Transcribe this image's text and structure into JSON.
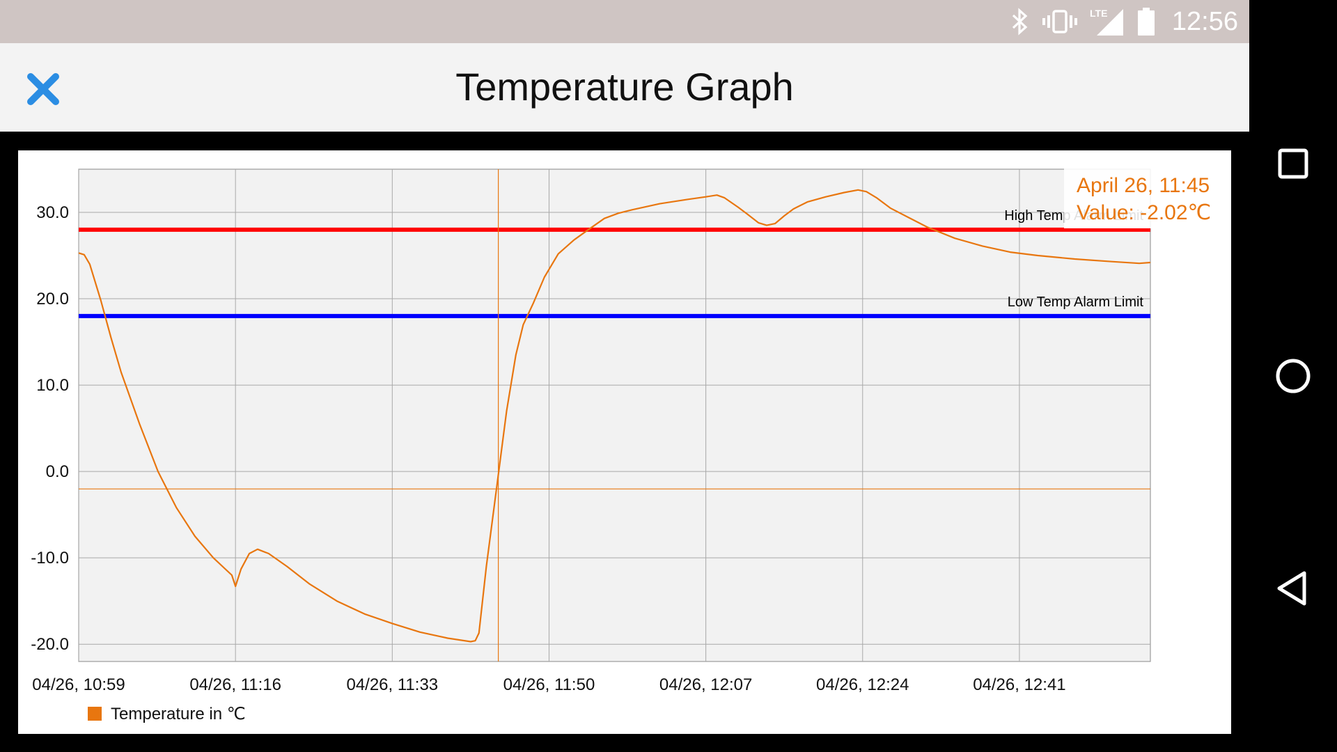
{
  "status_bar": {
    "time": "12:56",
    "icons": [
      "bluetooth-icon",
      "vibrate-icon",
      "lte-signal-icon",
      "battery-icon"
    ],
    "lte_label": "LTE"
  },
  "app_bar": {
    "title": "Temperature Graph",
    "close_icon": "close-icon",
    "close_color": "#2b8de3"
  },
  "nav_bar": {
    "icons": [
      "recents-square-icon",
      "home-circle-icon",
      "back-triangle-icon"
    ]
  },
  "chart_data": {
    "type": "line",
    "ylim": [
      -22,
      35
    ],
    "yticks": [
      30,
      20,
      10,
      0,
      -10,
      -20
    ],
    "ytick_labels": [
      "30.0",
      "20.0",
      "10.0",
      "0.0",
      "-10.0",
      "-20.0"
    ],
    "xlim": [
      0,
      116.2
    ],
    "xticks": [
      0,
      17,
      34,
      51,
      68,
      85,
      102
    ],
    "xtick_labels": [
      "04/26, 10:59",
      "04/26, 11:16",
      "04/26, 11:33",
      "04/26, 11:50",
      "04/26, 12:07",
      "04/26, 12:24",
      "04/26, 12:41"
    ],
    "grid": true,
    "legend_position": "bottom-left",
    "series": [
      {
        "name": "Temperature in ℃",
        "color": "#e8760f",
        "points": [
          [
            0,
            25.3
          ],
          [
            0.6,
            25.1
          ],
          [
            1.2,
            24.0
          ],
          [
            2.4,
            19.8
          ],
          [
            3.5,
            15.5
          ],
          [
            4.6,
            11.5
          ],
          [
            6.6,
            5.5
          ],
          [
            8.6,
            0.0
          ],
          [
            10.6,
            -4.2
          ],
          [
            12.6,
            -7.5
          ],
          [
            14.6,
            -10.0
          ],
          [
            16.6,
            -12.0
          ],
          [
            17.0,
            -13.3
          ],
          [
            17.6,
            -11.3
          ],
          [
            18.5,
            -9.5
          ],
          [
            19.4,
            -9.0
          ],
          [
            20.6,
            -9.5
          ],
          [
            22.6,
            -11.0
          ],
          [
            25.0,
            -13.0
          ],
          [
            28.0,
            -15.0
          ],
          [
            31.0,
            -16.5
          ],
          [
            34.0,
            -17.6
          ],
          [
            37.0,
            -18.6
          ],
          [
            40.0,
            -19.3
          ],
          [
            42.5,
            -19.7
          ],
          [
            43.0,
            -19.6
          ],
          [
            43.4,
            -18.7
          ],
          [
            44.2,
            -11.0
          ],
          [
            45.3,
            -2.0
          ],
          [
            46.4,
            7.0
          ],
          [
            47.4,
            13.5
          ],
          [
            48.2,
            17.0
          ],
          [
            49.3,
            19.5
          ],
          [
            50.5,
            22.5
          ],
          [
            52.0,
            25.2
          ],
          [
            53.7,
            26.8
          ],
          [
            55.0,
            27.8
          ],
          [
            57.0,
            29.3
          ],
          [
            58.5,
            29.9
          ],
          [
            60.0,
            30.3
          ],
          [
            63.0,
            31.0
          ],
          [
            66.0,
            31.5
          ],
          [
            68.0,
            31.8
          ],
          [
            69.2,
            32.0
          ],
          [
            70.0,
            31.7
          ],
          [
            71.5,
            30.6
          ],
          [
            72.5,
            29.8
          ],
          [
            73.7,
            28.8
          ],
          [
            74.6,
            28.5
          ],
          [
            75.5,
            28.7
          ],
          [
            76.5,
            29.6
          ],
          [
            77.5,
            30.4
          ],
          [
            79.0,
            31.2
          ],
          [
            81.0,
            31.8
          ],
          [
            83.0,
            32.3
          ],
          [
            84.5,
            32.6
          ],
          [
            85.4,
            32.4
          ],
          [
            86.5,
            31.7
          ],
          [
            88.0,
            30.5
          ],
          [
            90.0,
            29.4
          ],
          [
            92.0,
            28.3
          ],
          [
            95.0,
            27.0
          ],
          [
            98.0,
            26.1
          ],
          [
            101.0,
            25.4
          ],
          [
            104.0,
            25.0
          ],
          [
            108.0,
            24.6
          ],
          [
            112.0,
            24.3
          ],
          [
            115.0,
            24.1
          ],
          [
            116.2,
            24.2
          ]
        ]
      }
    ],
    "limit_lines": [
      {
        "label": "High Temp Alarm Limit",
        "value": 28,
        "color": "#ff0000"
      },
      {
        "label": "Low Temp Alarm Limit",
        "value": 18,
        "color": "#0000ff"
      }
    ],
    "crosshair": {
      "x": 45.5,
      "y": -2.02,
      "color": "#e8760f"
    },
    "tooltip": {
      "line1": "April 26, 11:45",
      "line2": "Value: -2.02℃"
    }
  }
}
